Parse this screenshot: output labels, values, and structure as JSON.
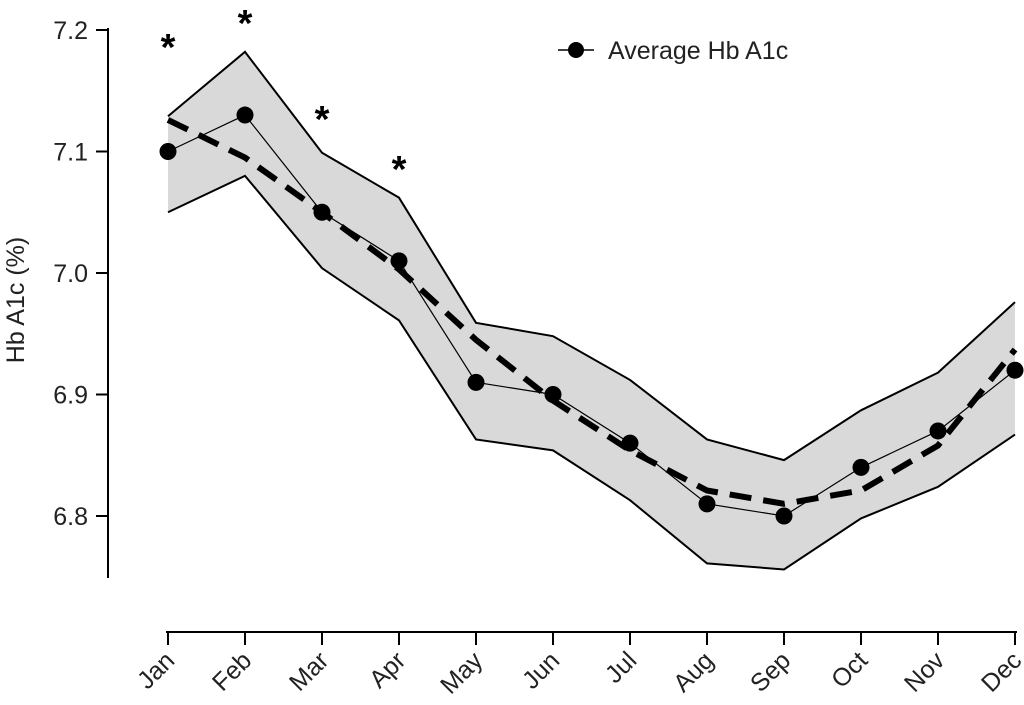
{
  "chart_data": {
    "type": "line",
    "title": "",
    "xlabel": "",
    "ylabel": "Hb A1c (%)",
    "ylim": [
      6.748,
      7.2
    ],
    "yticks": [
      "6.8",
      "6.9",
      "7.0",
      "7.1",
      "7.2"
    ],
    "ytick_values": [
      6.8,
      6.9,
      7.0,
      7.1,
      7.2
    ],
    "categories": [
      "Jan",
      "Feb",
      "Mar",
      "Apr",
      "May",
      "Jun",
      "Jul",
      "Aug",
      "Sep",
      "Oct",
      "Nov",
      "Dec"
    ],
    "series": [
      {
        "name": "Average Hb A1c",
        "values": [
          7.1,
          7.13,
          7.05,
          7.01,
          6.91,
          6.9,
          6.86,
          6.81,
          6.8,
          6.84,
          6.87,
          6.92
        ]
      },
      {
        "name": "trend",
        "style": "dashed",
        "values": [
          7.126,
          7.095,
          7.05,
          7.003,
          6.945,
          6.895,
          6.854,
          6.821,
          6.81,
          6.821,
          6.858,
          6.937
        ]
      },
      {
        "name": "upper",
        "values": [
          7.129,
          7.182,
          7.099,
          7.062,
          6.959,
          6.948,
          6.912,
          6.863,
          6.846,
          6.887,
          6.918,
          6.976
        ]
      },
      {
        "name": "lower",
        "values": [
          7.05,
          7.08,
          7.004,
          6.961,
          6.863,
          6.854,
          6.813,
          6.761,
          6.756,
          6.798,
          6.824,
          6.867
        ]
      }
    ],
    "significance_marker": "*",
    "significant_months": [
      "Jan",
      "Feb",
      "Mar",
      "Apr"
    ],
    "legend": {
      "label": "Average Hb A1c",
      "position": "top-right"
    },
    "colors": {
      "band": "#d9d9d9",
      "line": "#000000"
    }
  }
}
